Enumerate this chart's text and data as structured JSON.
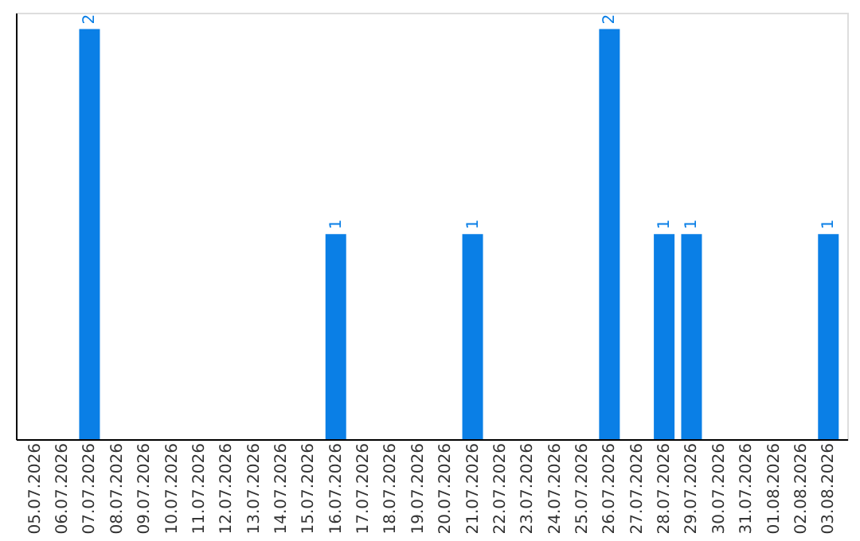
{
  "chart_data": {
    "type": "bar",
    "categories": [
      "05.07.2026",
      "06.07.2026",
      "07.07.2026",
      "08.07.2026",
      "09.07.2026",
      "10.07.2026",
      "11.07.2026",
      "12.07.2026",
      "13.07.2026",
      "14.07.2026",
      "15.07.2026",
      "16.07.2026",
      "17.07.2026",
      "18.07.2026",
      "19.07.2026",
      "20.07.2026",
      "21.07.2026",
      "22.07.2026",
      "23.07.2026",
      "24.07.2026",
      "25.07.2026",
      "26.07.2026",
      "27.07.2026",
      "28.07.2026",
      "29.07.2026",
      "30.07.2026",
      "31.07.2026",
      "01.08.2026",
      "02.08.2026",
      "03.08.2026"
    ],
    "values": [
      0,
      0,
      2,
      0,
      0,
      0,
      0,
      0,
      0,
      0,
      0,
      1,
      0,
      0,
      0,
      0,
      1,
      0,
      0,
      0,
      0,
      2,
      0,
      1,
      1,
      0,
      0,
      0,
      0,
      1
    ],
    "value_labels": [
      null,
      null,
      "2",
      null,
      null,
      null,
      null,
      null,
      null,
      null,
      null,
      "1",
      null,
      null,
      null,
      null,
      "1",
      null,
      null,
      null,
      null,
      "2",
      null,
      "1",
      "1",
      null,
      null,
      null,
      null,
      "1"
    ],
    "color": "#0a7fe6",
    "ylim": [
      0,
      2.08
    ],
    "tick_labels": "x",
    "grid": false
  }
}
